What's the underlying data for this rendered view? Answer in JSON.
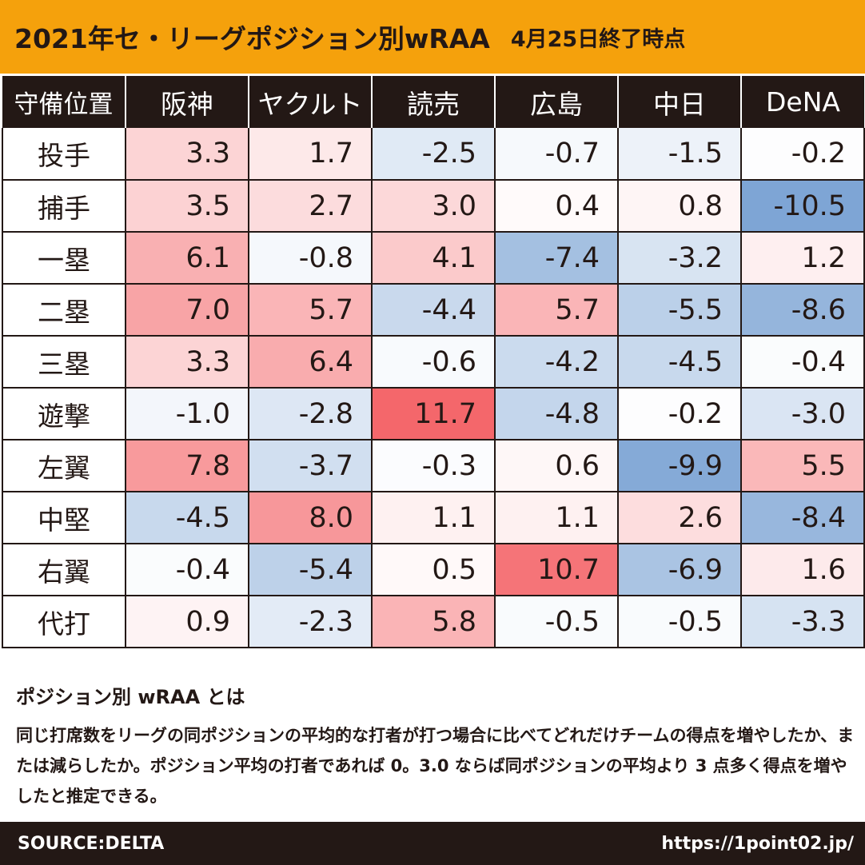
{
  "header": {
    "title": "2021年セ・リーグポジション別wRAA",
    "subtitle": "4月25日終了時点"
  },
  "chart_data": {
    "type": "heatmap",
    "corner_label": "守備位置",
    "columns": [
      "阪神",
      "ヤクルト",
      "読売",
      "広島",
      "中日",
      "DeNA"
    ],
    "rows": [
      "投手",
      "捕手",
      "一塁",
      "二塁",
      "三塁",
      "遊撃",
      "左翼",
      "中堅",
      "右翼",
      "代打"
    ],
    "values": [
      [
        3.3,
        1.7,
        -2.5,
        -0.7,
        -1.5,
        -0.2
      ],
      [
        3.5,
        2.7,
        3.0,
        0.4,
        0.8,
        -10.5
      ],
      [
        6.1,
        -0.8,
        4.1,
        -7.4,
        -3.2,
        1.2
      ],
      [
        7.0,
        5.7,
        -4.4,
        5.7,
        -5.5,
        -8.6
      ],
      [
        3.3,
        6.4,
        -0.6,
        -4.2,
        -4.5,
        -0.4
      ],
      [
        -1.0,
        -2.8,
        11.7,
        -4.8,
        -0.2,
        -3.0
      ],
      [
        7.8,
        -3.7,
        -0.3,
        0.6,
        -9.9,
        5.5
      ],
      [
        -4.5,
        8.0,
        1.1,
        1.1,
        2.6,
        -8.4
      ],
      [
        -0.4,
        -5.4,
        0.5,
        10.7,
        -6.9,
        1.6
      ],
      [
        0.9,
        -2.3,
        5.8,
        -0.5,
        -0.5,
        -3.3
      ]
    ],
    "color_scale": {
      "negative": "#6f9bd0",
      "zero": "#ffffff",
      "positive": "#f4676b"
    }
  },
  "note": {
    "title": "ポジション別 wRAA とは",
    "body": "同じ打席数をリーグの同ポジションの平均的な打者が打つ場合に比べてどれだけチームの得点を増やしたか、または減らしたか。ポジション平均の打者であれば 0。3.0 ならば同ポジションの平均より 3 点多く得点を増やしたと推定できる。"
  },
  "footer": {
    "source": "SOURCE:DELTA",
    "url": "https://1point02.jp/"
  }
}
